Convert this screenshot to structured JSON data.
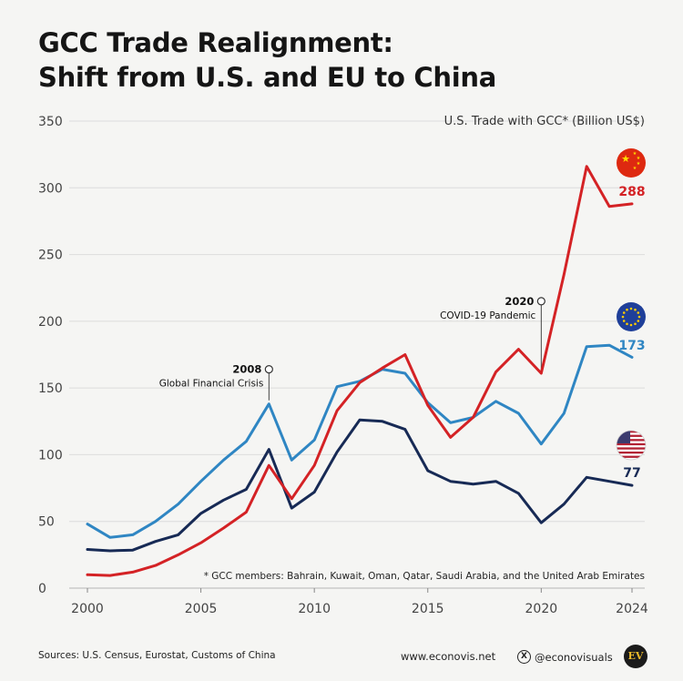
{
  "title_line1": "GCC Trade Realignment:",
  "title_line2": "Shift from U.S. and EU to China",
  "colors": {
    "china": "#d42225",
    "eu": "#2f86c3",
    "us": "#172a55",
    "grid": "#dcdcdc",
    "axis_text": "#444444"
  },
  "chart_data": {
    "type": "line",
    "title": "U.S. Trade with GCC* (Billion US$)",
    "ylim": [
      0,
      350
    ],
    "yticks": [
      0,
      50,
      100,
      150,
      200,
      250,
      300,
      350
    ],
    "xlim": [
      2000,
      2024
    ],
    "xticks": [
      2000,
      2005,
      2010,
      2015,
      2020,
      2024
    ],
    "x": [
      2000,
      2001,
      2002,
      2003,
      2004,
      2005,
      2006,
      2007,
      2008,
      2009,
      2010,
      2011,
      2012,
      2013,
      2014,
      2015,
      2016,
      2017,
      2018,
      2019,
      2020,
      2021,
      2022,
      2023,
      2024
    ],
    "series": [
      {
        "name": "China",
        "color_key": "china",
        "end_label": "288",
        "values": [
          10,
          9.5,
          12,
          17,
          25,
          34,
          45,
          57,
          92,
          67,
          92,
          133,
          154,
          165,
          175,
          137,
          113,
          128,
          162,
          179,
          161,
          235,
          316,
          286,
          288
        ]
      },
      {
        "name": "EU",
        "color_key": "eu",
        "end_label": "173",
        "values": [
          48,
          38,
          40,
          50,
          63,
          80,
          96,
          110,
          138,
          96,
          111,
          151,
          155,
          164,
          161,
          139,
          124,
          128,
          140,
          131,
          108,
          131,
          181,
          182,
          173
        ]
      },
      {
        "name": "U.S.",
        "color_key": "us",
        "end_label": "77",
        "values": [
          29,
          28,
          28.5,
          35,
          40,
          56,
          66,
          74,
          104,
          60,
          72,
          102,
          126,
          125,
          119,
          88,
          80,
          78,
          80,
          71,
          49,
          63,
          83,
          80,
          77
        ]
      }
    ],
    "annotations": [
      {
        "year_label": "2008",
        "text": "Global Financial Crisis",
        "x": 2008,
        "y": 164
      },
      {
        "year_label": "2020",
        "text": "COVID-19 Pandemic",
        "x": 2020,
        "y": 215
      }
    ],
    "footnote": "* GCC members: Bahrain, Kuwait, Oman, Qatar, Saudi Arabia, and the United Arab Emirates"
  },
  "footer": {
    "sources": "Sources: U.S. Census, Eurostat, Customs of China",
    "website": "www.econovis.net",
    "handle": "@econovisuals",
    "x_icon": "X",
    "logo": "EV"
  }
}
